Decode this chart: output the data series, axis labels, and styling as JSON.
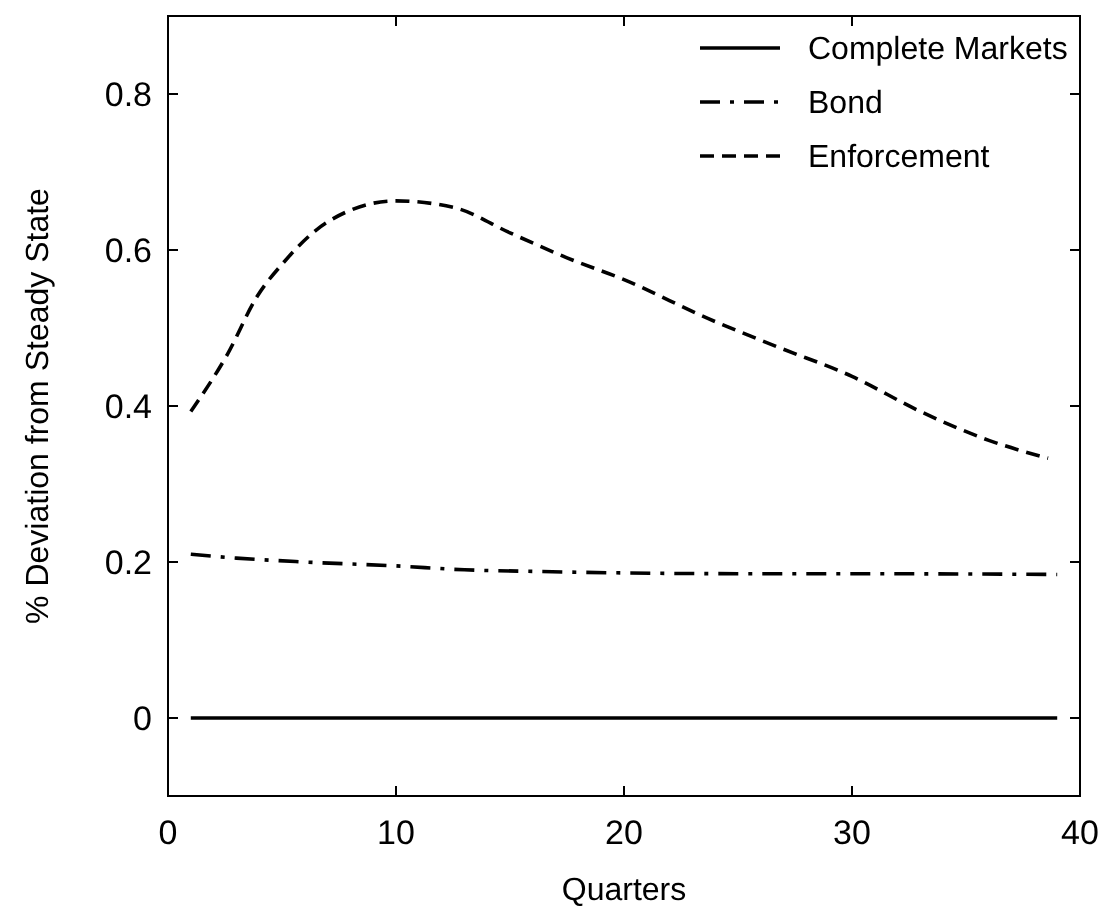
{
  "chart_data": {
    "type": "line",
    "xlabel": "Quarters",
    "ylabel": "% Deviation from Steady State",
    "xlim": [
      0,
      40
    ],
    "ylim": [
      -0.1,
      0.9
    ],
    "xticks": [
      0,
      10,
      20,
      30,
      40
    ],
    "yticks": [
      0,
      0.2,
      0.4,
      0.6,
      0.8
    ],
    "grid": false,
    "legend": "top right",
    "marker": "none",
    "series": [
      {
        "name": "Complete Markets",
        "color": "#000000",
        "line_style": "solid",
        "x": [
          1,
          10,
          20,
          30,
          39
        ],
        "values": [
          0,
          0,
          0,
          0,
          0
        ]
      },
      {
        "name": "Bond",
        "color": "#000000",
        "line_style": "dashdot",
        "x": [
          1,
          3,
          6,
          10,
          13,
          16,
          20,
          25,
          30,
          39
        ],
        "values": [
          0.21,
          0.205,
          0.2,
          0.195,
          0.19,
          0.188,
          0.186,
          0.185,
          0.185,
          0.184
        ]
      },
      {
        "name": "Enforcement",
        "color": "#000000",
        "line_style": "dashed",
        "x": [
          1,
          2.6,
          3.9,
          5.1,
          7,
          10,
          12.6,
          15,
          17.5,
          20,
          23.7,
          26.8,
          30,
          33,
          36,
          38.6
        ],
        "values": [
          0.393,
          0.466,
          0.54,
          0.585,
          0.636,
          0.663,
          0.654,
          0.622,
          0.59,
          0.562,
          0.512,
          0.475,
          0.438,
          0.393,
          0.356,
          0.333
        ]
      }
    ]
  }
}
